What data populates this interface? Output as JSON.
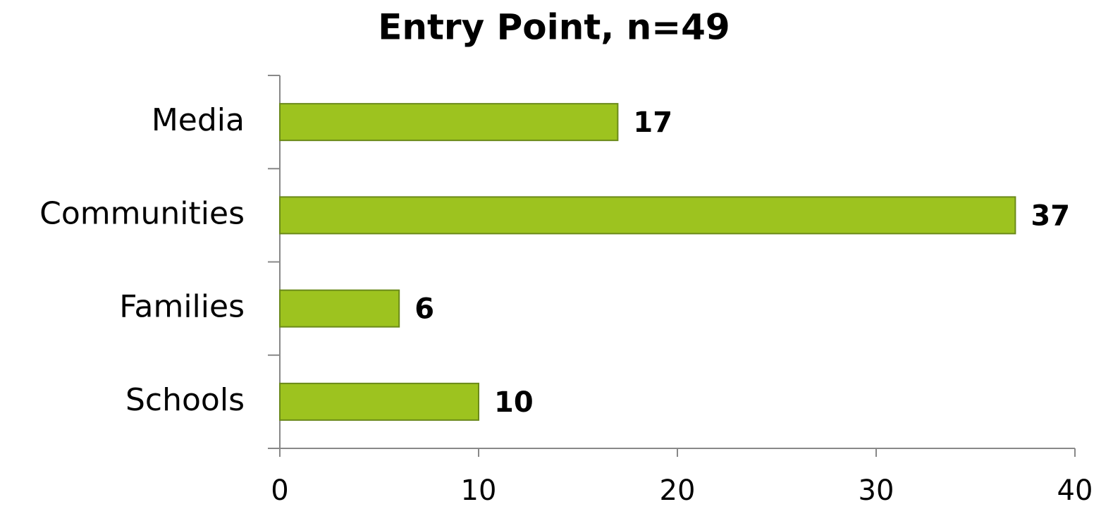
{
  "chart_data": {
    "type": "bar",
    "orientation": "horizontal",
    "title": "Entry Point, n=49",
    "categories": [
      "Media",
      "Communities",
      "Families",
      "Schools"
    ],
    "values": [
      17,
      37,
      6,
      10
    ],
    "color": "#9dc31f",
    "xlim": [
      0,
      40
    ],
    "xticks": [
      0,
      10,
      20,
      30,
      40
    ],
    "grid": false
  }
}
